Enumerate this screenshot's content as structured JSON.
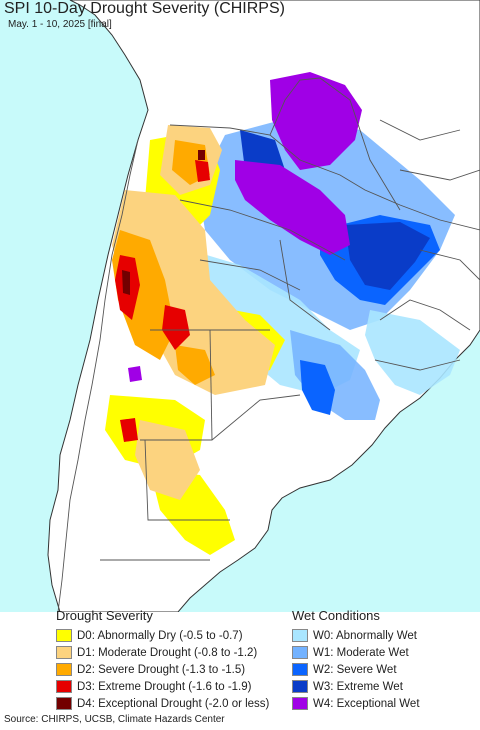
{
  "header": {
    "title": "SPI 10-Day Drought Severity (CHIRPS)",
    "subtitle": "May. 1 - 10, 2025 [final]"
  },
  "colors": {
    "ocean": "#c8fafa",
    "land": "#ffffff",
    "border": "#555555",
    "coast": "#333333",
    "d0": "#ffff00",
    "d1": "#fcd37f",
    "d2": "#ffaa00",
    "d3": "#e60000",
    "d4": "#730000",
    "w0": "#aae6ff",
    "w1": "#73b2ff",
    "w2": "#0a64ff",
    "w3": "#0a3cc8",
    "w4": "#a000e6"
  },
  "legend": {
    "drought_title": "Drought Severity",
    "drought_items": [
      {
        "key": "d0",
        "label": "D0: Abnormally Dry (-0.5 to -0.7)"
      },
      {
        "key": "d1",
        "label": "D1: Moderate Drought (-0.8 to -1.2)"
      },
      {
        "key": "d2",
        "label": "D2: Severe Drought (-1.3 to -1.5)"
      },
      {
        "key": "d3",
        "label": "D3: Extreme Drought (-1.6 to -1.9)"
      },
      {
        "key": "d4",
        "label": "D4: Exceptional Drought (-2.0 or less)"
      }
    ],
    "wet_title": "Wet Conditions",
    "wet_items": [
      {
        "key": "w0",
        "label": "W0: Abnormally Wet"
      },
      {
        "key": "w1",
        "label": "W1: Moderate Wet"
      },
      {
        "key": "w2",
        "label": "W2: Severe Wet"
      },
      {
        "key": "w3",
        "label": "W3: Extreme Wet"
      },
      {
        "key": "w4",
        "label": "W4: Exceptional Wet"
      }
    ]
  },
  "footer": {
    "source": "Source: CHIRPS, UCSB, Climate Hazards Center"
  }
}
